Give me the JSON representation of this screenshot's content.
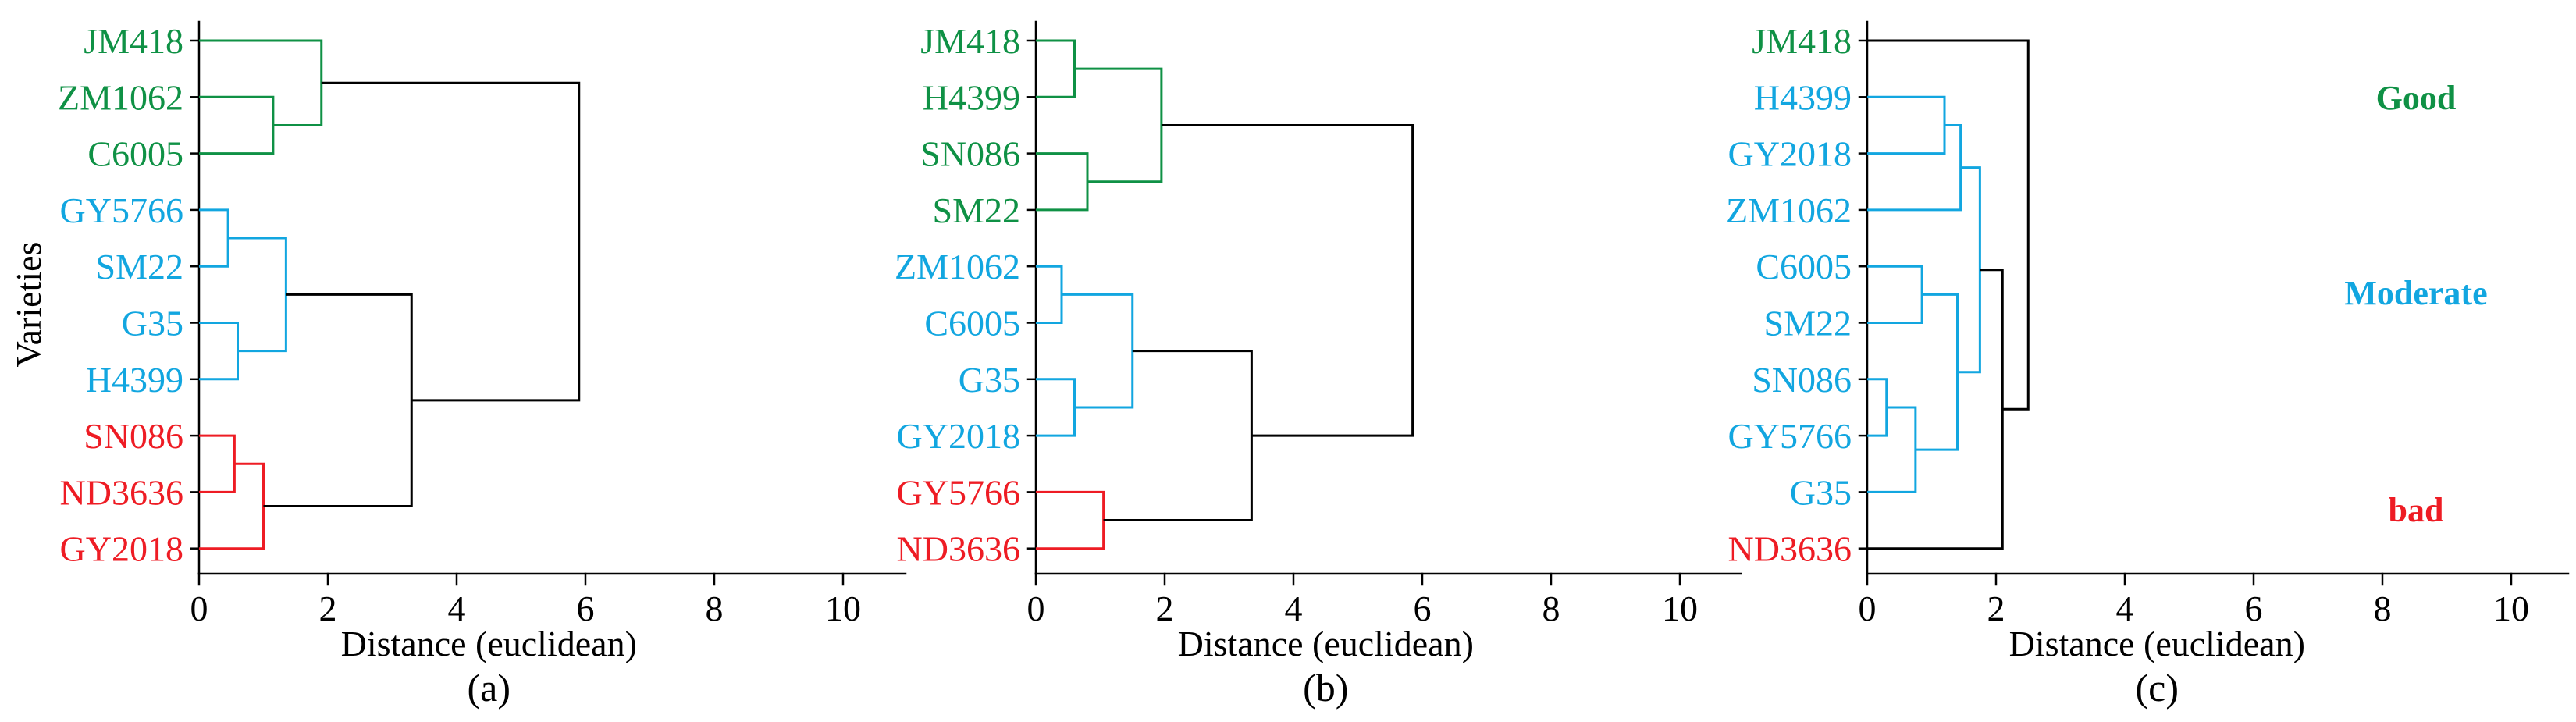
{
  "colors": {
    "good": "#0f9145",
    "moderate": "#12a6e0",
    "bad": "#ee1c24",
    "link": "#000000"
  },
  "chart_data": [
    {
      "type": "dendrogram",
      "panel_label": "(a)",
      "xlabel": "Distance (euclidean)",
      "ylabel": "Varieties",
      "xlim": [
        0,
        11
      ],
      "xticks": [
        "0",
        "2",
        "4",
        "6",
        "8",
        "10"
      ],
      "leaves": [
        {
          "name": "JM418",
          "group": "good"
        },
        {
          "name": "ZM1062",
          "group": "good"
        },
        {
          "name": "C6005",
          "group": "good"
        },
        {
          "name": "GY5766",
          "group": "moderate"
        },
        {
          "name": "SM22",
          "group": "moderate"
        },
        {
          "name": "G35",
          "group": "moderate"
        },
        {
          "name": "H4399",
          "group": "moderate"
        },
        {
          "name": "SN086",
          "group": "bad"
        },
        {
          "name": "ND3636",
          "group": "bad"
        },
        {
          "name": "GY2018",
          "group": "bad"
        }
      ],
      "merges": [
        {
          "a": "L1",
          "b": "L2",
          "height": 1.15,
          "group": "good"
        },
        {
          "a": "L0",
          "b": "M0",
          "height": 1.9,
          "group": "good"
        },
        {
          "a": "L3",
          "b": "L4",
          "height": 0.45,
          "group": "moderate"
        },
        {
          "a": "L5",
          "b": "L6",
          "height": 0.6,
          "group": "moderate"
        },
        {
          "a": "M2",
          "b": "M3",
          "height": 1.35,
          "group": "moderate"
        },
        {
          "a": "L7",
          "b": "L8",
          "height": 0.55,
          "group": "bad"
        },
        {
          "a": "M5",
          "b": "L9",
          "height": 1.0,
          "group": "bad"
        },
        {
          "a": "M4",
          "b": "M6",
          "height": 3.3,
          "group": "link"
        },
        {
          "a": "M1",
          "b": "M7",
          "height": 5.9,
          "group": "link"
        }
      ]
    },
    {
      "type": "dendrogram",
      "panel_label": "(b)",
      "xlabel": "Distance (euclidean)",
      "ylabel": "",
      "xlim": [
        0,
        11
      ],
      "xticks": [
        "0",
        "2",
        "4",
        "6",
        "8",
        "10"
      ],
      "leaves": [
        {
          "name": "JM418",
          "group": "good"
        },
        {
          "name": "H4399",
          "group": "good"
        },
        {
          "name": "SN086",
          "group": "good"
        },
        {
          "name": "SM22",
          "group": "good"
        },
        {
          "name": "ZM1062",
          "group": "moderate"
        },
        {
          "name": "C6005",
          "group": "moderate"
        },
        {
          "name": "G35",
          "group": "moderate"
        },
        {
          "name": "GY2018",
          "group": "moderate"
        },
        {
          "name": "GY5766",
          "group": "bad"
        },
        {
          "name": "ND3636",
          "group": "bad"
        }
      ],
      "merges": [
        {
          "a": "L0",
          "b": "L1",
          "height": 0.6,
          "group": "good"
        },
        {
          "a": "L2",
          "b": "L3",
          "height": 0.8,
          "group": "good"
        },
        {
          "a": "M0",
          "b": "M1",
          "height": 1.95,
          "group": "good"
        },
        {
          "a": "L4",
          "b": "L5",
          "height": 0.4,
          "group": "moderate"
        },
        {
          "a": "L6",
          "b": "L7",
          "height": 0.6,
          "group": "moderate"
        },
        {
          "a": "M3",
          "b": "M4",
          "height": 1.5,
          "group": "moderate"
        },
        {
          "a": "L8",
          "b": "L9",
          "height": 1.05,
          "group": "bad"
        },
        {
          "a": "M5",
          "b": "M6",
          "height": 3.35,
          "group": "link"
        },
        {
          "a": "M2",
          "b": "M7",
          "height": 5.85,
          "group": "link"
        }
      ]
    },
    {
      "type": "dendrogram",
      "panel_label": "(c)",
      "xlabel": "Distance (euclidean)",
      "ylabel": "",
      "xlim": [
        0,
        11
      ],
      "xticks": [
        "0",
        "2",
        "4",
        "6",
        "8",
        "10"
      ],
      "leaves": [
        {
          "name": "JM418",
          "group": "good"
        },
        {
          "name": "H4399",
          "group": "moderate"
        },
        {
          "name": "GY2018",
          "group": "moderate"
        },
        {
          "name": "ZM1062",
          "group": "moderate"
        },
        {
          "name": "C6005",
          "group": "moderate"
        },
        {
          "name": "SM22",
          "group": "moderate"
        },
        {
          "name": "SN086",
          "group": "moderate"
        },
        {
          "name": "GY5766",
          "group": "moderate"
        },
        {
          "name": "G35",
          "group": "moderate"
        },
        {
          "name": "ND3636",
          "group": "bad"
        }
      ],
      "merges": [
        {
          "a": "L1",
          "b": "L2",
          "height": 1.2,
          "group": "moderate"
        },
        {
          "a": "M0",
          "b": "L3",
          "height": 1.45,
          "group": "moderate"
        },
        {
          "a": "L4",
          "b": "L5",
          "height": 0.85,
          "group": "moderate"
        },
        {
          "a": "L6",
          "b": "L7",
          "height": 0.3,
          "group": "moderate"
        },
        {
          "a": "M3",
          "b": "L8",
          "height": 0.75,
          "group": "moderate"
        },
        {
          "a": "M2",
          "b": "M4",
          "height": 1.4,
          "group": "moderate"
        },
        {
          "a": "M1",
          "b": "M5",
          "height": 1.75,
          "group": "moderate"
        },
        {
          "a": "M6",
          "b": "L9",
          "height": 2.1,
          "group": "link"
        },
        {
          "a": "L0",
          "b": "M7",
          "height": 2.5,
          "group": "link"
        }
      ],
      "legend": [
        {
          "label": "Good",
          "group": "good"
        },
        {
          "label": "Moderate",
          "group": "moderate"
        },
        {
          "label": "bad",
          "group": "bad"
        }
      ]
    }
  ]
}
